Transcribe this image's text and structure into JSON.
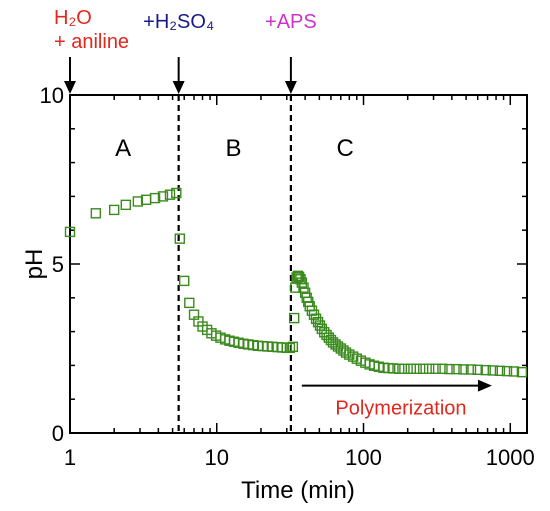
{
  "chart_data": {
    "type": "scatter",
    "title": "",
    "xlabel": "Time (min)",
    "ylabel": "pH",
    "xscale": "log",
    "xlim": [
      1,
      1300
    ],
    "ylim": [
      0,
      10
    ],
    "x_ticks": [
      1,
      10,
      100,
      1000
    ],
    "x_tick_labels": [
      "1",
      "10",
      "100",
      "1000"
    ],
    "y_ticks": [
      0,
      5,
      10
    ],
    "y_tick_labels": [
      "0",
      "5",
      "10"
    ],
    "grid": false,
    "marker": "open-square",
    "colors": {
      "series": "#3a8a1e",
      "red_text": "#e0281e",
      "navy_text": "#1a1a8c",
      "magenta_text": "#cc33cc"
    },
    "events": [
      {
        "x": 1,
        "lines": [
          "H₂O",
          "+ aniline"
        ],
        "color": "#e0281e",
        "dashed_line": false
      },
      {
        "x": 5.5,
        "lines": [
          "+H₂SO₄"
        ],
        "color": "#1a1a8c",
        "dashed_line": true
      },
      {
        "x": 32,
        "lines": [
          "+APS"
        ],
        "color": "#cc33cc",
        "dashed_line": true
      }
    ],
    "regions": [
      {
        "label": "A",
        "x": 2.3,
        "y": 8.2
      },
      {
        "label": "B",
        "x": 13,
        "y": 8.2
      },
      {
        "label": "C",
        "x": 75,
        "y": 8.2
      }
    ],
    "annotations": [
      {
        "text": "Polymerization",
        "color": "#e0281e",
        "arrow_from": 38,
        "arrow_to": 750,
        "arrow_y": 1.4,
        "text_x": 180,
        "text_y": 0.55
      }
    ],
    "series": [
      {
        "x": [
          1,
          1.5,
          2,
          2.4,
          2.9,
          3.3,
          3.8,
          4.3,
          4.8,
          5.3,
          5.6,
          6.0,
          6.5,
          7.0,
          7.5,
          8.0,
          8.6,
          9.2,
          9.9,
          10.6,
          11.4,
          12.2,
          13.1,
          14.1,
          15.2,
          16.4,
          17.7,
          19.1,
          20.6,
          22.2,
          24,
          26,
          28,
          30,
          31.5,
          33,
          33.7,
          34.3,
          35,
          35.7,
          36.4,
          37.2,
          38,
          39,
          40,
          41,
          42,
          43,
          44.5,
          46,
          47.5,
          49,
          50.5,
          52,
          54,
          56,
          58,
          60,
          62,
          64.5,
          67,
          70,
          73,
          76,
          80,
          85,
          90,
          96,
          103,
          110,
          118,
          127,
          137,
          148,
          160,
          175,
          190,
          210,
          230,
          255,
          280,
          310,
          345,
          385,
          430,
          480,
          540,
          600,
          680,
          760,
          850,
          950,
          1060,
          1200
        ],
        "y": [
          5.95,
          6.5,
          6.6,
          6.75,
          6.85,
          6.9,
          6.95,
          7.0,
          7.05,
          7.1,
          5.75,
          4.5,
          3.85,
          3.5,
          3.3,
          3.15,
          3.05,
          2.95,
          2.88,
          2.82,
          2.77,
          2.73,
          2.7,
          2.67,
          2.64,
          2.62,
          2.6,
          2.58,
          2.57,
          2.56,
          2.55,
          2.54,
          2.53,
          2.52,
          2.52,
          2.55,
          3.4,
          4.3,
          4.6,
          4.65,
          4.62,
          4.55,
          4.45,
          4.3,
          4.15,
          4.0,
          3.88,
          3.75,
          3.62,
          3.5,
          3.38,
          3.28,
          3.18,
          3.08,
          2.98,
          2.9,
          2.82,
          2.75,
          2.68,
          2.62,
          2.56,
          2.5,
          2.44,
          2.38,
          2.32,
          2.26,
          2.2,
          2.14,
          2.08,
          2.03,
          1.99,
          1.96,
          1.93,
          1.92,
          1.91,
          1.9,
          1.9,
          1.9,
          1.9,
          1.9,
          1.9,
          1.9,
          1.9,
          1.89,
          1.89,
          1.88,
          1.88,
          1.87,
          1.86,
          1.85,
          1.84,
          1.83,
          1.82,
          1.8
        ]
      }
    ]
  }
}
